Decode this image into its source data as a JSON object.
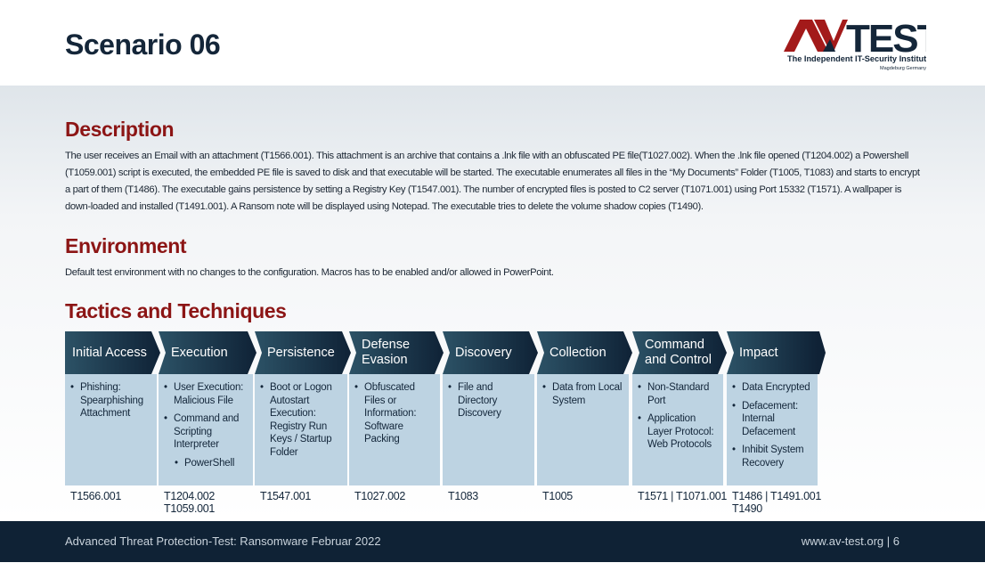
{
  "header": {
    "title": "Scenario 06",
    "logo": {
      "text": "AV-TEST",
      "tagline": "The Independent IT-Security Institute",
      "location": "Magdeburg Germany",
      "colors": {
        "red": "#a31a1a",
        "navy": "#142639"
      }
    }
  },
  "description": {
    "heading": "Description",
    "text": "The user receives an Email with an attachment (T1566.001). This attachment is an archive that contains a .lnk file with an obfuscated PE file(T1027.002). When the .lnk file opened (T1204.002) a Powershell (T1059.001) script is executed, the embedded PE file is saved to disk and that executable will be started. The executable enumerates all files in the “My Documents” Folder (T1005, T1083) and starts to encrypt a part of them (T1486). The executable gains persistence by setting a Registry Key (T1547.001). The number of encrypted files is posted to C2 server (T1071.001) using Port 15332 (T1571). A wallpaper is down-loaded and installed (T1491.001). A Ransom note will be displayed using Notepad. The executable tries to delete the volume shadow copies (T1490)."
  },
  "environment": {
    "heading": "Environment",
    "text": "Default test environment with no changes to the configuration. Macros has to be enabled and/or allowed in PowerPoint."
  },
  "tactics": {
    "heading": "Tactics and Techniques",
    "columns": [
      {
        "name": "Initial Access",
        "items": [
          {
            "t": "Phishing: Spearphishing Attachment"
          }
        ],
        "codes": "T1566.001"
      },
      {
        "name": "Execution",
        "items": [
          {
            "t": "User Execution: Malicious File"
          },
          {
            "t": "Command and Scripting Interpreter"
          },
          {
            "t": "PowerShell",
            "sub": true
          }
        ],
        "codes": "T1204.002\nT1059.001"
      },
      {
        "name": "Persistence",
        "items": [
          {
            "t": "Boot or Logon Autostart Execution: Registry Run Keys / Startup Folder"
          }
        ],
        "codes": "T1547.001"
      },
      {
        "name": "Defense Evasion",
        "items": [
          {
            "t": "Obfuscated Files or Information: Software Packing"
          }
        ],
        "codes": "T1027.002"
      },
      {
        "name": "Discovery",
        "items": [
          {
            "t": "File and Directory Discovery"
          }
        ],
        "codes": "T1083"
      },
      {
        "name": "Collection",
        "items": [
          {
            "t": "Data from Local System"
          }
        ],
        "codes": "T1005"
      },
      {
        "name": "Command and Control",
        "items": [
          {
            "t": "Non-Standard Port"
          },
          {
            "t": "Application Layer Protocol: Web Protocols"
          }
        ],
        "codes": "T1571 | T1071.001"
      },
      {
        "name": "Impact",
        "items": [
          {
            "t": "Data Encrypted"
          },
          {
            "t": "Defacement: Internal Defacement"
          },
          {
            "t": "Inhibit System Recovery"
          }
        ],
        "codes": "T1486 | T1491.001\nT1490"
      }
    ]
  },
  "footer": {
    "left": "Advanced Threat Protection-Test: Ransomware Februar 2022",
    "right": "www.av-test.org | 6"
  }
}
